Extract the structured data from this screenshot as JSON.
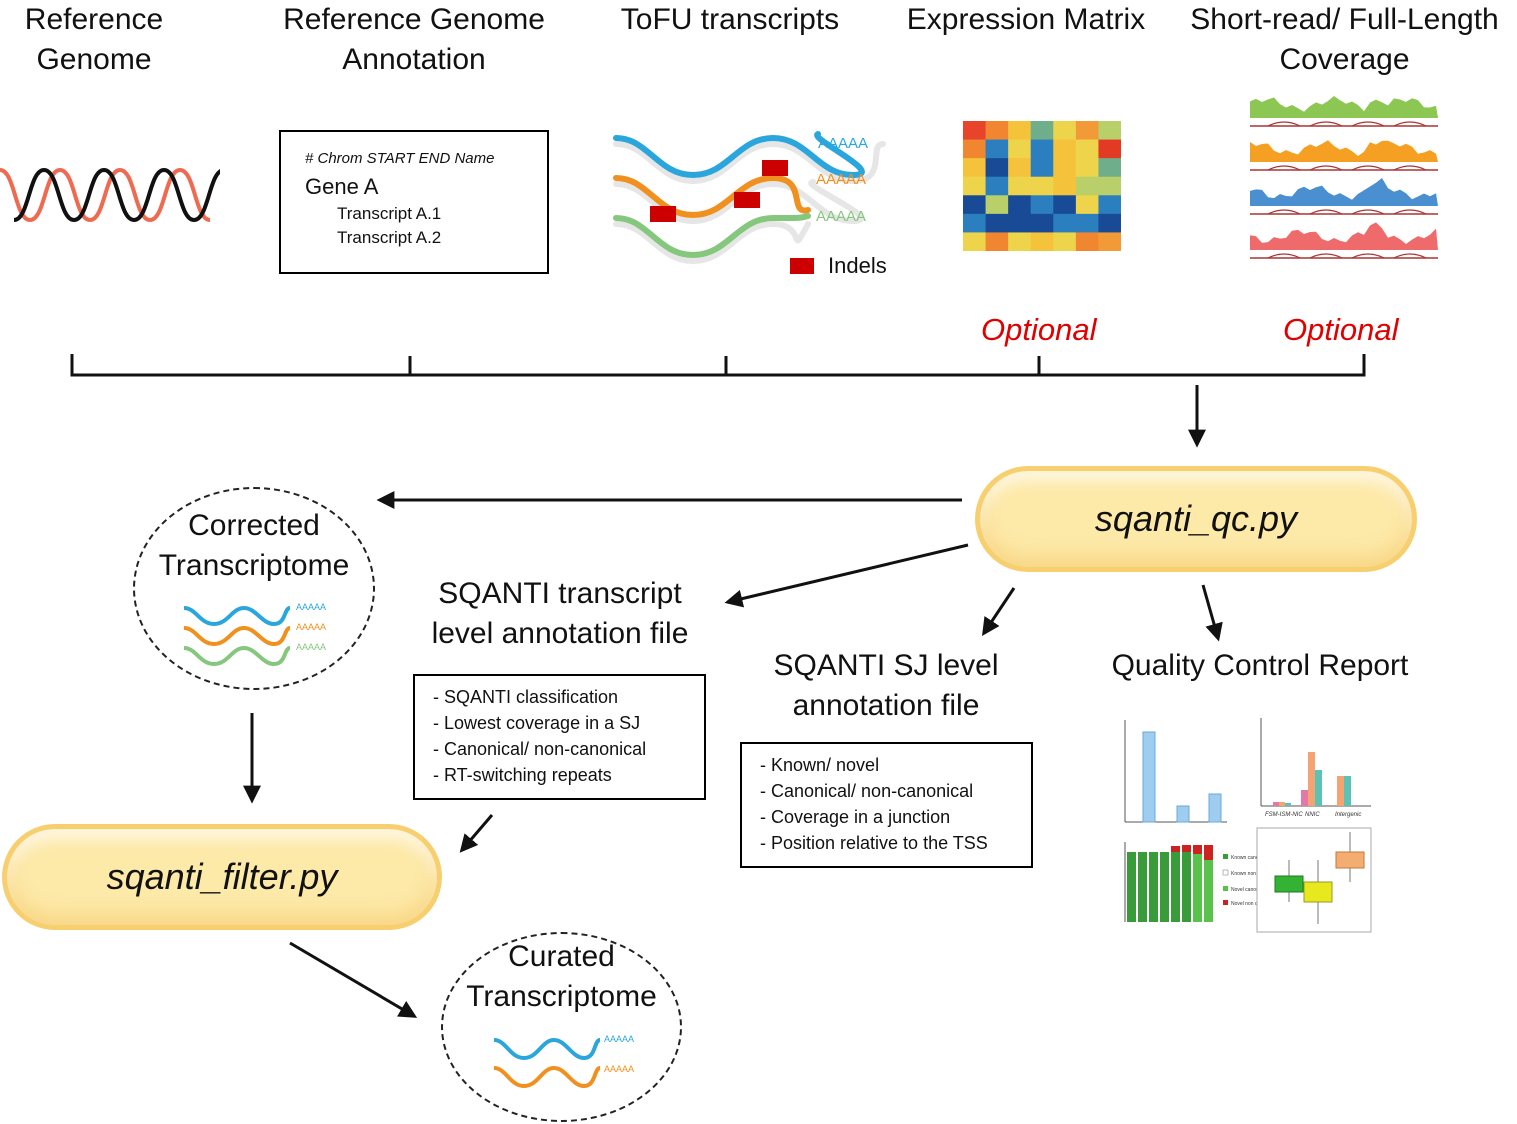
{
  "inputs": {
    "reference_genome": [
      "Reference",
      "Genome"
    ],
    "reference_annotation": [
      "Reference Genome",
      "Annotation"
    ],
    "tofu_transcripts": "ToFU transcripts",
    "expression_matrix": "Expression Matrix",
    "coverage": [
      "Short-read/ Full-Length",
      "Coverage"
    ]
  },
  "annotation_example": {
    "header": "# Chrom START END Name",
    "gene": "Gene A",
    "transcripts": [
      "Transcript A.1",
      "Transcript A.2"
    ]
  },
  "tofu_legend": {
    "polya": "AAAAA",
    "indels": "Indels"
  },
  "optional_label": "Optional",
  "sqanti_qc": "sqanti_qc.py",
  "sqanti_filter": "sqanti_filter.py",
  "corrected_transcriptome": [
    "Corrected",
    "Transcriptome"
  ],
  "curated_transcriptome": [
    "Curated",
    "Transcriptome"
  ],
  "transcript_level_file": {
    "title": [
      "SQANTI transcript",
      "level annotation file"
    ],
    "items": [
      "- SQANTI classification",
      "- Lowest coverage in a SJ",
      "- Canonical/ non-canonical",
      "- RT-switching repeats"
    ]
  },
  "sj_level_file": {
    "title": [
      "SQANTI SJ level",
      "annotation file"
    ],
    "items": [
      "- Known/ novel",
      "- Canonical/ non-canonical",
      "- Coverage in a junction",
      "- Position relative to the TSS"
    ]
  },
  "qc_report": {
    "title": "Quality Control Report",
    "bar_categories": [
      "FSM-ISM-NIC",
      "NNIC",
      "Intergenic"
    ],
    "legend": [
      "Known canonical SJ",
      "Known non canonical SJ",
      "Novel canonical SJ",
      "Novel non canonical SJ"
    ]
  },
  "colors": {
    "optional": "#e00000",
    "pill_fill": "#fde9a8",
    "pill_border": "#f7cf6f",
    "blue": "#2aa6dd",
    "orange": "#f0901e",
    "green": "#86c77e",
    "indel": "#cc0000"
  }
}
